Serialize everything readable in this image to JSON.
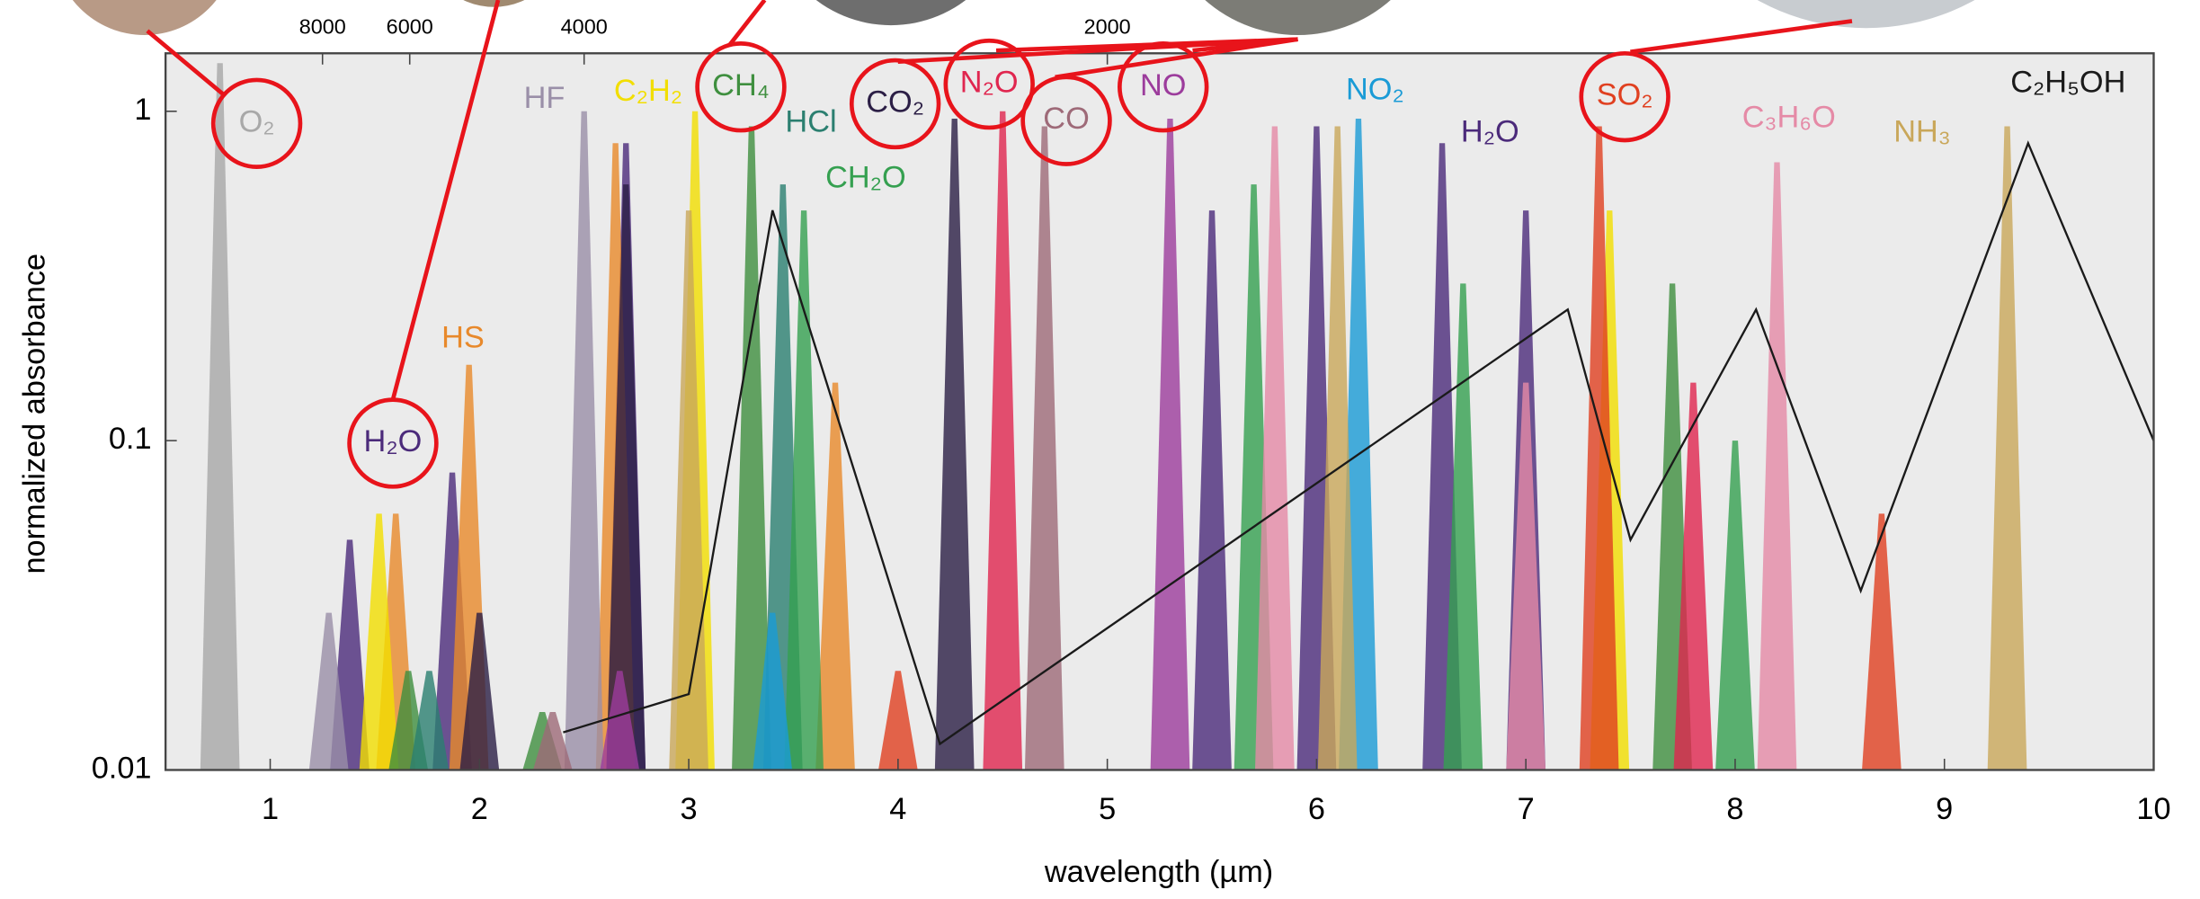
{
  "chart_data": {
    "type": "spectrum",
    "x_label": "wavelength (µm)",
    "y_label": "normalized absorbance",
    "xlim": [
      0.5,
      10
    ],
    "xticks": [
      1,
      2,
      3,
      4,
      5,
      6,
      7,
      8,
      9,
      10
    ],
    "x2ticks": [
      8000,
      6000,
      4000,
      2000
    ],
    "ylim": [
      0.01,
      1.5
    ],
    "yticks": [
      0.01,
      0.1,
      1
    ],
    "yscale": "log",
    "series": [
      {
        "name": "O₂",
        "color": "#a8a8a8",
        "x": [
          0.76
        ],
        "values": [
          1.4
        ]
      },
      {
        "name": "H₂O",
        "color": "#4b2a7a",
        "x": [
          1.38,
          1.87,
          2.7,
          5.5,
          6.0,
          6.6,
          7.0
        ],
        "values": [
          0.05,
          0.08,
          0.8,
          0.5,
          0.9,
          0.8,
          0.5
        ]
      },
      {
        "name": "HS",
        "color": "#e8892b",
        "x": [
          1.6,
          1.95,
          2.65,
          3.7
        ],
        "values": [
          0.06,
          0.17,
          0.8,
          0.15
        ]
      },
      {
        "name": "HF",
        "color": "#9a8fa8",
        "x": [
          1.28,
          2.5
        ],
        "values": [
          0.03,
          1.0
        ]
      },
      {
        "name": "C₂H₂",
        "color": "#f2de00",
        "x": [
          1.52,
          3.03,
          7.4
        ],
        "values": [
          0.06,
          1.0,
          0.5
        ]
      },
      {
        "name": "CH₄",
        "color": "#3f8f3f",
        "x": [
          1.66,
          2.3,
          3.3,
          7.7
        ],
        "values": [
          0.02,
          0.015,
          0.9,
          0.3
        ]
      },
      {
        "name": "HCl",
        "color": "#2b7f70",
        "x": [
          1.76,
          3.45
        ],
        "values": [
          0.02,
          0.6
        ]
      },
      {
        "name": "CH₂O",
        "color": "#35a050",
        "x": [
          3.55,
          5.7,
          6.7,
          8.0
        ],
        "values": [
          0.5,
          0.6,
          0.3,
          0.1
        ]
      },
      {
        "name": "CO₂",
        "color": "#2b1e45",
        "x": [
          2.0,
          2.7,
          4.27
        ],
        "values": [
          0.03,
          0.6,
          0.95
        ]
      },
      {
        "name": "N₂O",
        "color": "#e0264f",
        "x": [
          4.5,
          7.8
        ],
        "values": [
          1.0,
          0.15
        ]
      },
      {
        "name": "CO",
        "color": "#9e6a78",
        "x": [
          2.35,
          4.7
        ],
        "values": [
          0.015,
          0.9
        ]
      },
      {
        "name": "NO",
        "color": "#9c3c9c",
        "x": [
          2.67,
          5.3
        ],
        "values": [
          0.02,
          0.95
        ]
      },
      {
        "name": "NO₂",
        "color": "#1a9bd6",
        "x": [
          3.4,
          6.2
        ],
        "values": [
          0.03,
          0.95
        ]
      },
      {
        "name": "SO₂",
        "color": "#e04020",
        "x": [
          4.0,
          7.35,
          8.7
        ],
        "values": [
          0.02,
          0.9,
          0.06
        ]
      },
      {
        "name": "C₃H₆O",
        "color": "#e58aa6",
        "x": [
          5.8,
          7.0,
          8.2
        ],
        "values": [
          0.9,
          0.15,
          0.7
        ]
      },
      {
        "name": "NH₃",
        "color": "#c9a75a",
        "x": [
          3.0,
          6.1,
          9.3
        ],
        "values": [
          0.5,
          0.9,
          0.9
        ]
      },
      {
        "name": "C₂H₅OH",
        "color": "#1a1a1a",
        "style": "line",
        "x": [
          2.4,
          3.0,
          3.4,
          4.2,
          7.2,
          7.5,
          8.1,
          8.6,
          9.4,
          10
        ],
        "values": [
          0.013,
          0.017,
          0.5,
          0.012,
          0.25,
          0.05,
          0.25,
          0.035,
          0.8,
          0.1
        ]
      }
    ]
  }
}
